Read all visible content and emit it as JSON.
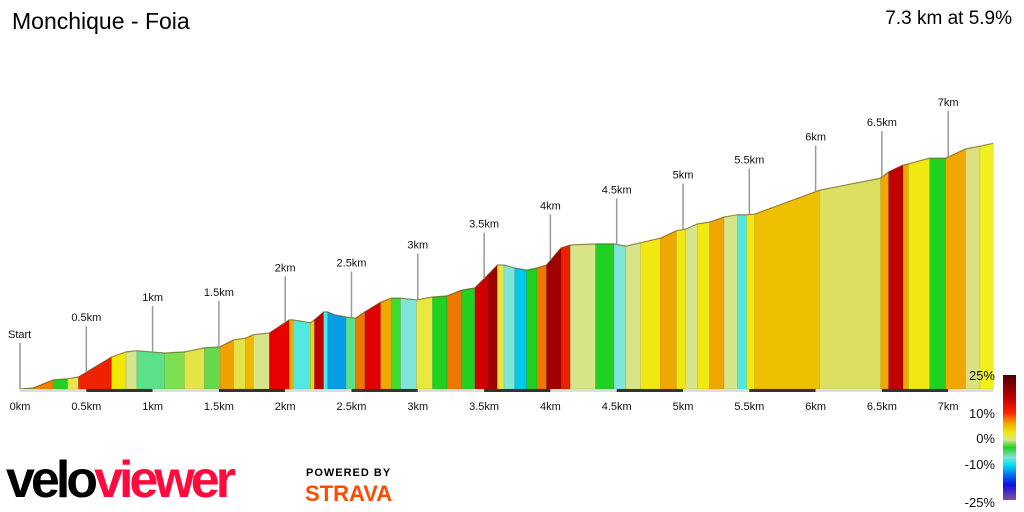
{
  "header": {
    "title": "Monchique - Foia",
    "summary": "7.3 km at 5.9%"
  },
  "chart_data": {
    "type": "area",
    "title": "Monchique - Foia",
    "xlabel": "",
    "ylabel": "",
    "x_unit": "km",
    "xlim": [
      0,
      7.34
    ],
    "points": [
      [
        0.0,
        470
      ],
      [
        0.1,
        472
      ],
      [
        0.25,
        486
      ],
      [
        0.36,
        488
      ],
      [
        0.44,
        491
      ],
      [
        0.69,
        526
      ],
      [
        0.8,
        535
      ],
      [
        0.88,
        537
      ],
      [
        1.09,
        533
      ],
      [
        1.24,
        535
      ],
      [
        1.39,
        542
      ],
      [
        1.51,
        544
      ],
      [
        1.61,
        556
      ],
      [
        1.7,
        559
      ],
      [
        1.76,
        565
      ],
      [
        1.88,
        568
      ],
      [
        2.03,
        591
      ],
      [
        2.06,
        591
      ],
      [
        2.19,
        586
      ],
      [
        2.22,
        591
      ],
      [
        2.29,
        605
      ],
      [
        2.32,
        605
      ],
      [
        2.37,
        600
      ],
      [
        2.46,
        596
      ],
      [
        2.53,
        594
      ],
      [
        2.6,
        605
      ],
      [
        2.72,
        622
      ],
      [
        2.8,
        629
      ],
      [
        2.87,
        629
      ],
      [
        2.99,
        626
      ],
      [
        3.11,
        631
      ],
      [
        3.22,
        633
      ],
      [
        3.33,
        643
      ],
      [
        3.43,
        647
      ],
      [
        3.53,
        670
      ],
      [
        3.6,
        687
      ],
      [
        3.65,
        687
      ],
      [
        3.73,
        682
      ],
      [
        3.82,
        678
      ],
      [
        3.9,
        682
      ],
      [
        3.97,
        687
      ],
      [
        4.08,
        717
      ],
      [
        4.15,
        722
      ],
      [
        4.34,
        724
      ],
      [
        4.48,
        724
      ],
      [
        4.57,
        720
      ],
      [
        4.68,
        726
      ],
      [
        4.83,
        734
      ],
      [
        4.95,
        747
      ],
      [
        5.02,
        750
      ],
      [
        5.11,
        759
      ],
      [
        5.2,
        762
      ],
      [
        5.31,
        771
      ],
      [
        5.41,
        775
      ],
      [
        5.48,
        775
      ],
      [
        5.54,
        776
      ],
      [
        6.03,
        818
      ],
      [
        6.49,
        839
      ],
      [
        6.55,
        850
      ],
      [
        6.66,
        862
      ],
      [
        6.7,
        864
      ],
      [
        6.86,
        874
      ],
      [
        6.98,
        874
      ],
      [
        7.13,
        890
      ],
      [
        7.24,
        895
      ],
      [
        7.34,
        900
      ]
    ],
    "segment_colors": [
      "#5fd35f",
      "#f08000",
      "#22d022",
      "#e8e84a",
      "#ee2200",
      "#f0e800",
      "#d8e488",
      "#5ce08a",
      "#7de050",
      "#e4e44a",
      "#66d84a",
      "#f0a000",
      "#e4e44a",
      "#f0b800",
      "#d8e488",
      "#e80000",
      "#f0b000",
      "#50e8e0",
      "#f0d000",
      "#c00000",
      "#50e8e0",
      "#00a0e8",
      "#00a0e8",
      "#5ce08a",
      "#ee7700",
      "#e00000",
      "#f0a800",
      "#40dd30",
      "#80e4d8",
      "#e8e840",
      "#22d022",
      "#ee7700",
      "#22d022",
      "#d00000",
      "#a00000",
      "#e8e840",
      "#80e4d8",
      "#00c8e8",
      "#22d022",
      "#ee7700",
      "#a00000",
      "#e82000",
      "#d8e488",
      "#22d022",
      "#80e4d8",
      "#d8e488",
      "#f0e810",
      "#f0a800",
      "#f0e810",
      "#d8e488",
      "#f0e810",
      "#f0a800",
      "#d8e488",
      "#50e8e0",
      "#f0e810",
      "#eec000",
      "#dce060",
      "#f0a800",
      "#c00000",
      "#f0a800",
      "#f0e810",
      "#22d022",
      "#f0a800",
      "#dce080",
      "#f0f020"
    ],
    "markers": [
      {
        "km": 0,
        "label": "Start",
        "axis": "0km"
      },
      {
        "km": 0.5,
        "label": "0.5km",
        "axis": "0.5km"
      },
      {
        "km": 1,
        "label": "1km",
        "axis": "1km"
      },
      {
        "km": 1.5,
        "label": "1.5km",
        "axis": "1.5km"
      },
      {
        "km": 2,
        "label": "2km",
        "axis": "2km"
      },
      {
        "km": 2.5,
        "label": "2.5km",
        "axis": "2.5km"
      },
      {
        "km": 3,
        "label": "3km",
        "axis": "3km"
      },
      {
        "km": 3.5,
        "label": "3.5km",
        "axis": "3.5km"
      },
      {
        "km": 4,
        "label": "4km",
        "axis": "4km"
      },
      {
        "km": 4.5,
        "label": "4.5km",
        "axis": "4.5km"
      },
      {
        "km": 5,
        "label": "5km",
        "axis": "5km"
      },
      {
        "km": 5.5,
        "label": "5.5km",
        "axis": "5.5km"
      },
      {
        "km": 6,
        "label": "6km",
        "axis": "6km"
      },
      {
        "km": 6.5,
        "label": "6.5km",
        "axis": "6.5km"
      },
      {
        "km": 7,
        "label": "7km",
        "axis": "7km"
      }
    ],
    "legend": {
      "labels": [
        "25%",
        "10%",
        "0%",
        "-10%",
        "-25%"
      ],
      "placement": "bottom-right"
    }
  },
  "footer": {
    "logo_text": "veloviewer",
    "powered_by": "POWERED BY",
    "strava": "STRAVA"
  }
}
